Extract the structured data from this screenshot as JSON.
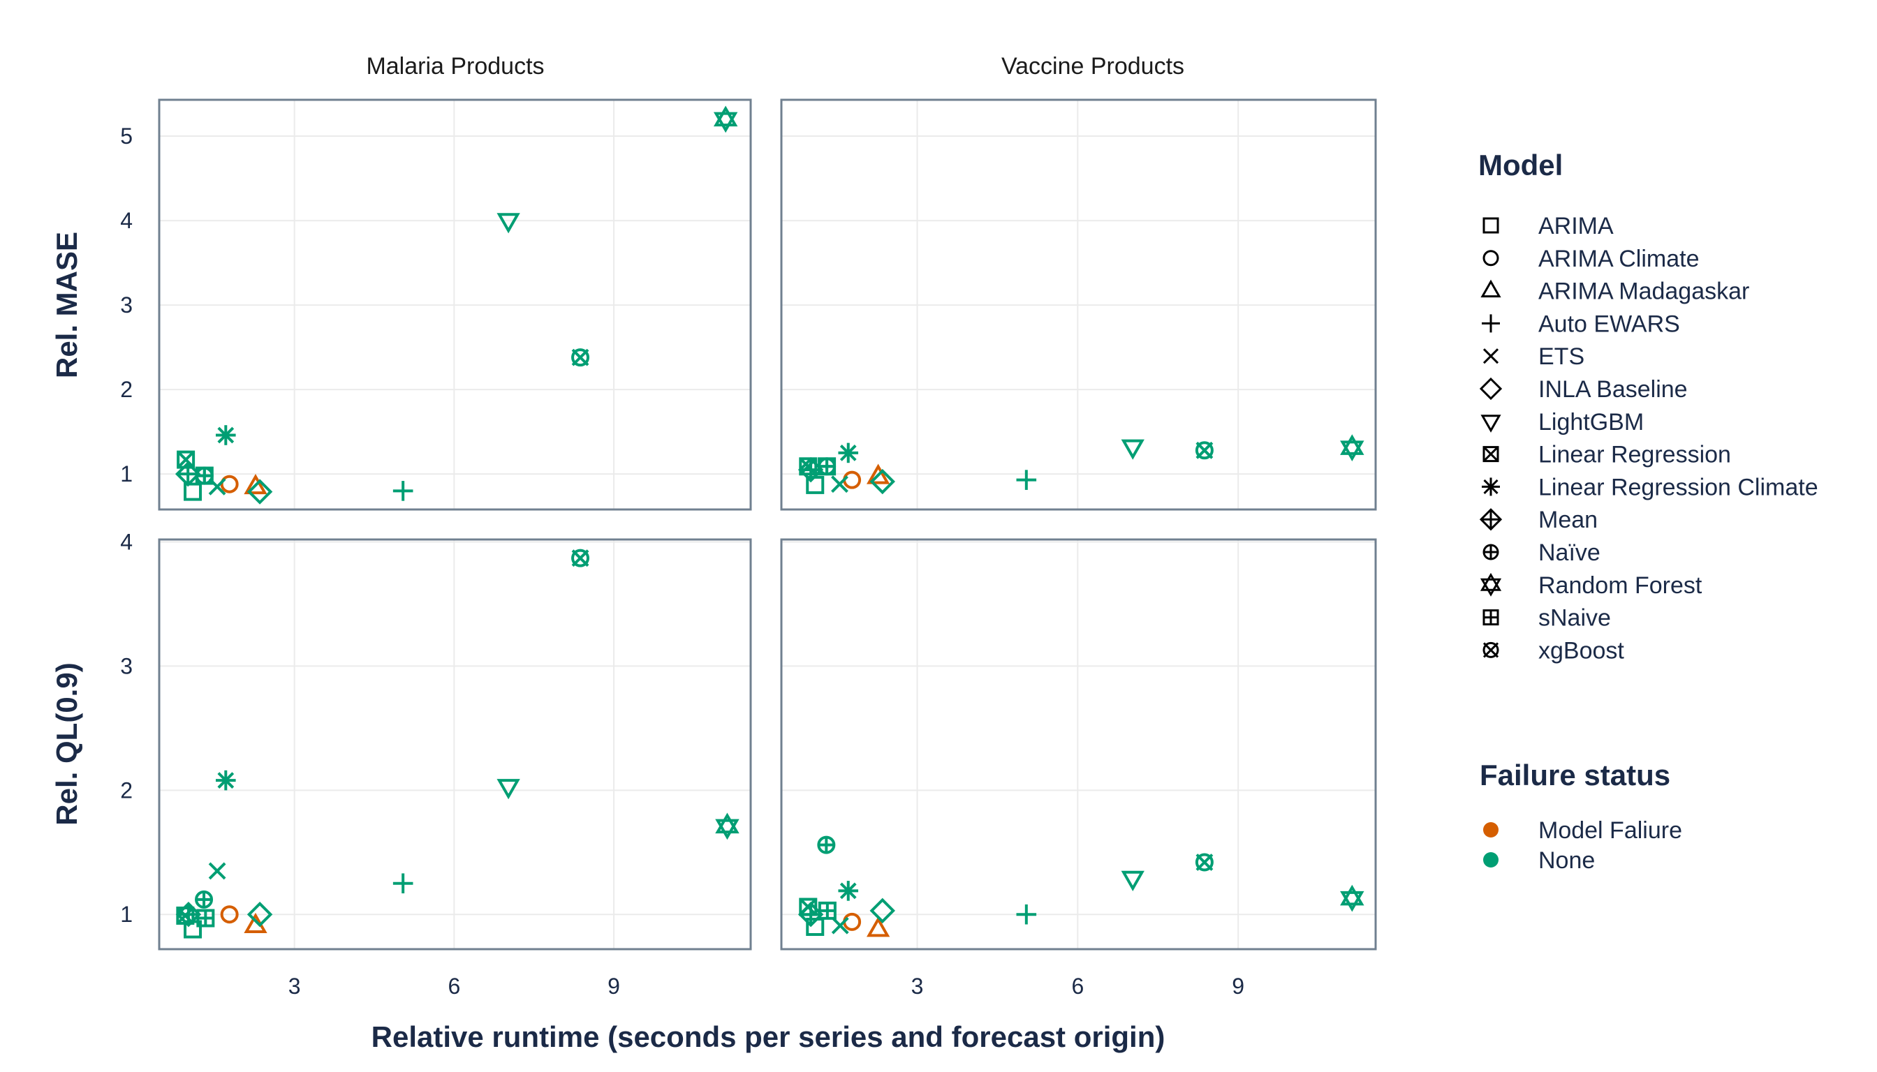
{
  "chart_data": {
    "type": "scatter",
    "layout": "facet-grid",
    "xlabel": "Relative runtime (seconds per series and forecast origin)",
    "columns": [
      "Malaria Products",
      "Vaccine Products"
    ],
    "rows": [
      {
        "ylabel": "Rel. MASE",
        "ylim": [
          0.58,
          5.43
        ],
        "yticks": [
          1,
          2,
          3,
          4,
          5
        ]
      },
      {
        "ylabel": "Rel. QL(0.9)",
        "ylim": [
          0.72,
          4.02
        ],
        "yticks": [
          1,
          2,
          3,
          4
        ]
      }
    ],
    "xlim": [
      0.46,
      11.57
    ],
    "xticks": [
      3,
      6,
      9
    ],
    "grid": true,
    "legend_shape": {
      "title": "Model",
      "items": [
        {
          "label": "ARIMA",
          "shape": "square"
        },
        {
          "label": "ARIMA Climate",
          "shape": "circle"
        },
        {
          "label": "ARIMA Madagaskar",
          "shape": "triangle-up"
        },
        {
          "label": "Auto EWARS",
          "shape": "plus"
        },
        {
          "label": "ETS",
          "shape": "cross"
        },
        {
          "label": "INLA Baseline",
          "shape": "diamond"
        },
        {
          "label": "LightGBM",
          "shape": "triangle-down"
        },
        {
          "label": "Linear Regression",
          "shape": "square-cross"
        },
        {
          "label": "Linear Regression Climate",
          "shape": "asterisk"
        },
        {
          "label": "Mean",
          "shape": "diamond-plus"
        },
        {
          "label": "Naïve",
          "shape": "circle-plus"
        },
        {
          "label": "Random Forest",
          "shape": "star-of-david"
        },
        {
          "label": "sNaive",
          "shape": "square-plus"
        },
        {
          "label": "xgBoost",
          "shape": "circle-cross"
        }
      ]
    },
    "legend_color": {
      "title": "Failure status",
      "items": [
        {
          "label": "Model Faliure",
          "color": "#D55E00"
        },
        {
          "label": "None",
          "color": "#009E73"
        }
      ]
    },
    "legend_position": "right",
    "panels": [
      {
        "column": "Malaria Products",
        "metric": "Rel. MASE",
        "points": [
          {
            "model": "ARIMA",
            "x": 1.09,
            "y": 0.79,
            "status": "None"
          },
          {
            "model": "ARIMA Climate",
            "x": 1.78,
            "y": 0.88,
            "status": "Model Faliure"
          },
          {
            "model": "ARIMA Madagaskar",
            "x": 2.27,
            "y": 0.85,
            "status": "Model Faliure"
          },
          {
            "model": "Auto EWARS",
            "x": 5.04,
            "y": 0.8,
            "status": "None"
          },
          {
            "model": "ETS",
            "x": 1.55,
            "y": 0.85,
            "status": "None"
          },
          {
            "model": "INLA Baseline",
            "x": 2.35,
            "y": 0.79,
            "status": "None"
          },
          {
            "model": "LightGBM",
            "x": 7.02,
            "y": 4.0,
            "status": "None"
          },
          {
            "model": "Linear Regression",
            "x": 0.96,
            "y": 1.17,
            "status": "None"
          },
          {
            "model": "Linear Regression Climate",
            "x": 1.71,
            "y": 1.46,
            "status": "None"
          },
          {
            "model": "Mean",
            "x": 1.0,
            "y": 1.0,
            "status": "None"
          },
          {
            "model": "Naïve",
            "x": 1.31,
            "y": 0.98,
            "status": "None"
          },
          {
            "model": "Random Forest",
            "x": 11.1,
            "y": 5.2,
            "status": "None"
          },
          {
            "model": "sNaive",
            "x": 1.31,
            "y": 0.98,
            "status": "None"
          },
          {
            "model": "xgBoost",
            "x": 8.37,
            "y": 2.38,
            "status": "None"
          }
        ]
      },
      {
        "column": "Vaccine Products",
        "metric": "Rel. MASE",
        "points": [
          {
            "model": "ARIMA",
            "x": 1.09,
            "y": 0.87,
            "status": "None"
          },
          {
            "model": "ARIMA Climate",
            "x": 1.78,
            "y": 0.93,
            "status": "Model Faliure"
          },
          {
            "model": "ARIMA Madagaskar",
            "x": 2.27,
            "y": 0.97,
            "status": "Model Faliure"
          },
          {
            "model": "Auto EWARS",
            "x": 5.04,
            "y": 0.93,
            "status": "None"
          },
          {
            "model": "ETS",
            "x": 1.55,
            "y": 0.88,
            "status": "None"
          },
          {
            "model": "INLA Baseline",
            "x": 2.35,
            "y": 0.91,
            "status": "None"
          },
          {
            "model": "LightGBM",
            "x": 7.03,
            "y": 1.32,
            "status": "None"
          },
          {
            "model": "Linear Regression",
            "x": 0.96,
            "y": 1.09,
            "status": "None"
          },
          {
            "model": "Linear Regression Climate",
            "x": 1.71,
            "y": 1.25,
            "status": "None"
          },
          {
            "model": "Mean",
            "x": 1.01,
            "y": 1.05,
            "status": "None"
          },
          {
            "model": "Naïve",
            "x": 1.31,
            "y": 1.09,
            "status": "None"
          },
          {
            "model": "Random Forest",
            "x": 11.13,
            "y": 1.31,
            "status": "None"
          },
          {
            "model": "sNaive",
            "x": 1.31,
            "y": 1.09,
            "status": "None"
          },
          {
            "model": "xgBoost",
            "x": 8.37,
            "y": 1.28,
            "status": "None"
          }
        ]
      },
      {
        "column": "Malaria Products",
        "metric": "Rel. QL(0.9)",
        "points": [
          {
            "model": "ARIMA",
            "x": 1.09,
            "y": 0.88,
            "status": "None"
          },
          {
            "model": "ARIMA Climate",
            "x": 1.78,
            "y": 1.0,
            "status": "Model Faliure"
          },
          {
            "model": "ARIMA Madagaskar",
            "x": 2.27,
            "y": 0.91,
            "status": "Model Faliure"
          },
          {
            "model": "Auto EWARS",
            "x": 5.04,
            "y": 1.25,
            "status": "None"
          },
          {
            "model": "ETS",
            "x": 1.55,
            "y": 1.35,
            "status": "None"
          },
          {
            "model": "INLA Baseline",
            "x": 2.35,
            "y": 1.0,
            "status": "None"
          },
          {
            "model": "LightGBM",
            "x": 7.02,
            "y": 2.03,
            "status": "None"
          },
          {
            "model": "Linear Regression",
            "x": 0.95,
            "y": 0.99,
            "status": "None"
          },
          {
            "model": "Linear Regression Climate",
            "x": 1.71,
            "y": 2.08,
            "status": "None"
          },
          {
            "model": "Mean",
            "x": 1.01,
            "y": 1.0,
            "status": "None"
          },
          {
            "model": "Naïve",
            "x": 1.3,
            "y": 1.12,
            "status": "None"
          },
          {
            "model": "Random Forest",
            "x": 11.13,
            "y": 1.71,
            "status": "None"
          },
          {
            "model": "sNaive",
            "x": 1.33,
            "y": 0.97,
            "status": "None"
          },
          {
            "model": "xgBoost",
            "x": 8.37,
            "y": 3.87,
            "status": "None"
          }
        ]
      },
      {
        "column": "Vaccine Products",
        "metric": "Rel. QL(0.9)",
        "points": [
          {
            "model": "ARIMA",
            "x": 1.09,
            "y": 0.9,
            "status": "None"
          },
          {
            "model": "ARIMA Climate",
            "x": 1.78,
            "y": 0.94,
            "status": "Model Faliure"
          },
          {
            "model": "ARIMA Madagaskar",
            "x": 2.27,
            "y": 0.88,
            "status": "Model Faliure"
          },
          {
            "model": "Auto EWARS",
            "x": 5.04,
            "y": 1.0,
            "status": "None"
          },
          {
            "model": "ETS",
            "x": 1.56,
            "y": 0.91,
            "status": "None"
          },
          {
            "model": "INLA Baseline",
            "x": 2.35,
            "y": 1.03,
            "status": "None"
          },
          {
            "model": "LightGBM",
            "x": 7.03,
            "y": 1.29,
            "status": "None"
          },
          {
            "model": "Linear Regression",
            "x": 0.96,
            "y": 1.06,
            "status": "None"
          },
          {
            "model": "Linear Regression Climate",
            "x": 1.71,
            "y": 1.19,
            "status": "None"
          },
          {
            "model": "Mean",
            "x": 1.01,
            "y": 1.0,
            "status": "None"
          },
          {
            "model": "Naïve",
            "x": 1.3,
            "y": 1.56,
            "status": "None"
          },
          {
            "model": "Random Forest",
            "x": 11.13,
            "y": 1.13,
            "status": "None"
          },
          {
            "model": "sNaive",
            "x": 1.32,
            "y": 1.03,
            "status": "None"
          },
          {
            "model": "xgBoost",
            "x": 8.37,
            "y": 1.42,
            "status": "None"
          }
        ]
      }
    ]
  }
}
